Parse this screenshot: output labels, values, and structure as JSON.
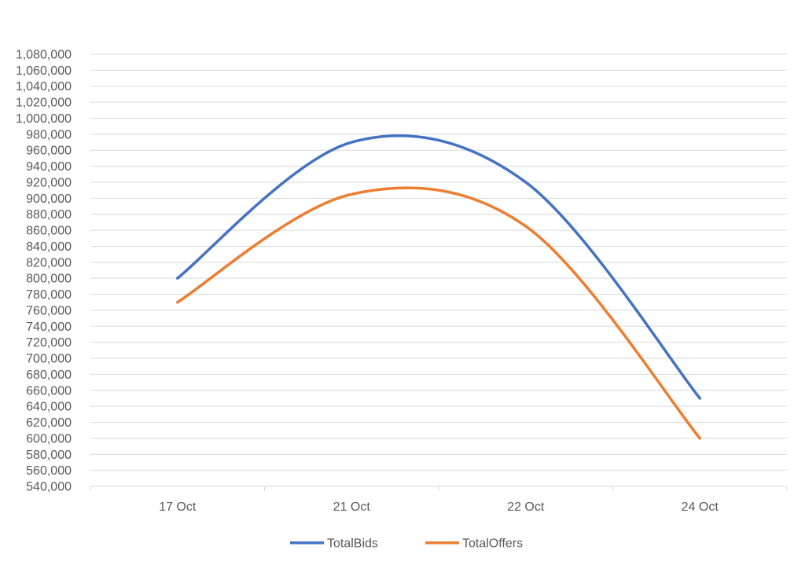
{
  "chart_data": {
    "type": "line",
    "smooth": true,
    "categories": [
      "17 Oct",
      "21 Oct",
      "22 Oct",
      "24 Oct"
    ],
    "series": [
      {
        "name": "TotalBids",
        "color": "#4472C4",
        "values": [
          800000,
          970000,
          920000,
          650000
        ]
      },
      {
        "name": "TotalOffers",
        "color": "#ED7D31",
        "values": [
          770000,
          905000,
          865000,
          600000
        ]
      }
    ],
    "ylim": [
      540000,
      1080000
    ],
    "ytick_step": 20000,
    "grid": true,
    "legend_position": "bottom",
    "title": "",
    "xlabel": "",
    "ylabel": ""
  }
}
